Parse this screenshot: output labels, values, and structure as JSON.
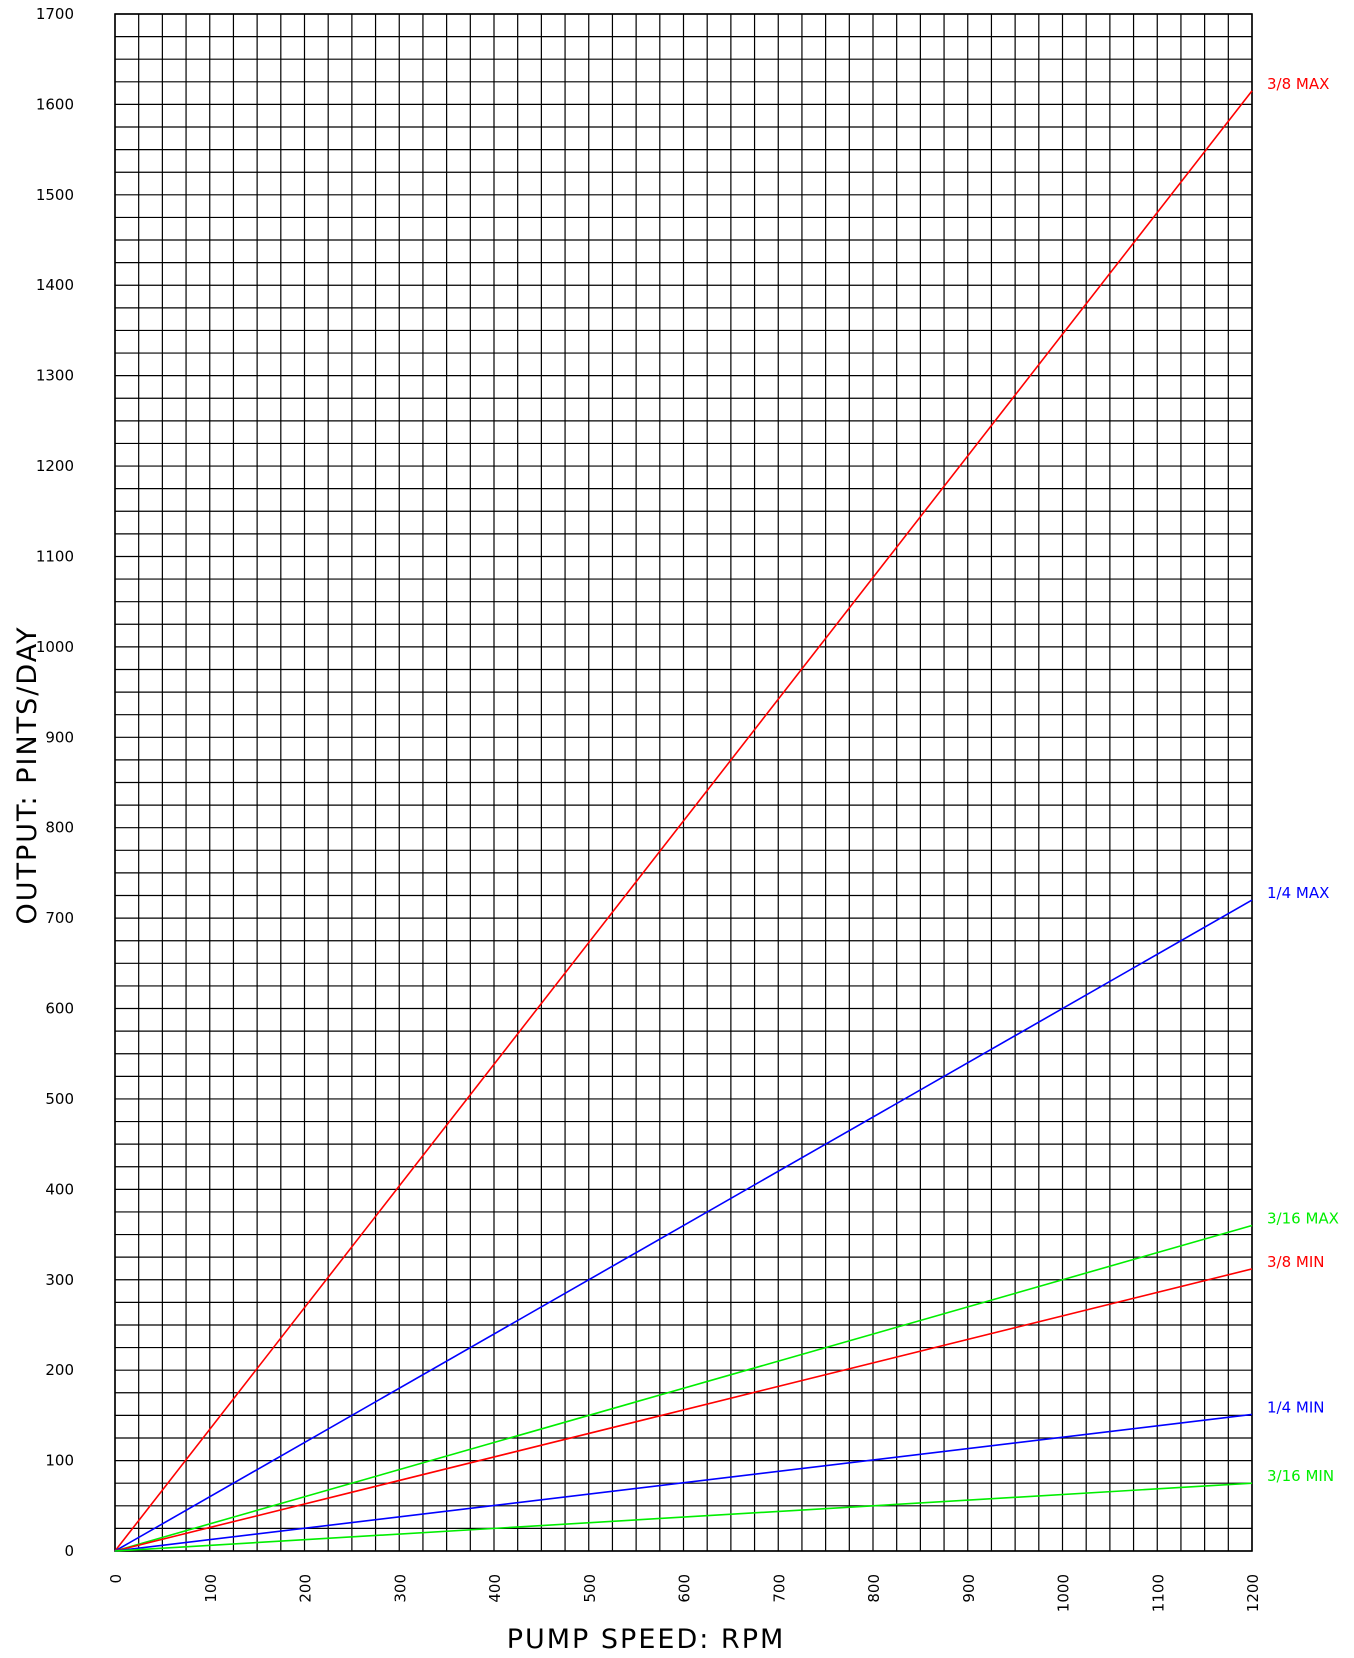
{
  "chart_data": {
    "type": "line",
    "title": "",
    "xlabel": "PUMP SPEED: RPM",
    "ylabel": "OUTPUT: PINTS/DAY",
    "xlim": [
      0,
      1200
    ],
    "ylim": [
      0,
      1700
    ],
    "x_ticks": [
      0,
      100,
      200,
      300,
      400,
      500,
      600,
      700,
      800,
      900,
      1000,
      1100,
      1200
    ],
    "y_ticks": [
      0,
      100,
      200,
      300,
      400,
      500,
      600,
      700,
      800,
      900,
      1000,
      1100,
      1200,
      1300,
      1400,
      1500,
      1600,
      1700
    ],
    "x_minor_step": 25,
    "y_minor_step": 25,
    "grid": true,
    "legend": "series labels at right end of lines",
    "series": [
      {
        "name": "3/8 MAX",
        "color": "#ff0000",
        "x": [
          0,
          1200
        ],
        "y": [
          0,
          1615
        ]
      },
      {
        "name": "1/4 MAX",
        "color": "#0000ff",
        "x": [
          0,
          1200
        ],
        "y": [
          0,
          720
        ]
      },
      {
        "name": "3/16 MAX",
        "color": "#00ee00",
        "x": [
          0,
          1200
        ],
        "y": [
          0,
          360
        ]
      },
      {
        "name": "3/8 MIN",
        "color": "#ff0000",
        "x": [
          0,
          1200
        ],
        "y": [
          0,
          312
        ]
      },
      {
        "name": "1/4 MIN",
        "color": "#0000ff",
        "x": [
          0,
          1200
        ],
        "y": [
          0,
          151
        ]
      },
      {
        "name": "3/16 MIN",
        "color": "#00ee00",
        "x": [
          0,
          1200
        ],
        "y": [
          0,
          75
        ]
      }
    ]
  }
}
